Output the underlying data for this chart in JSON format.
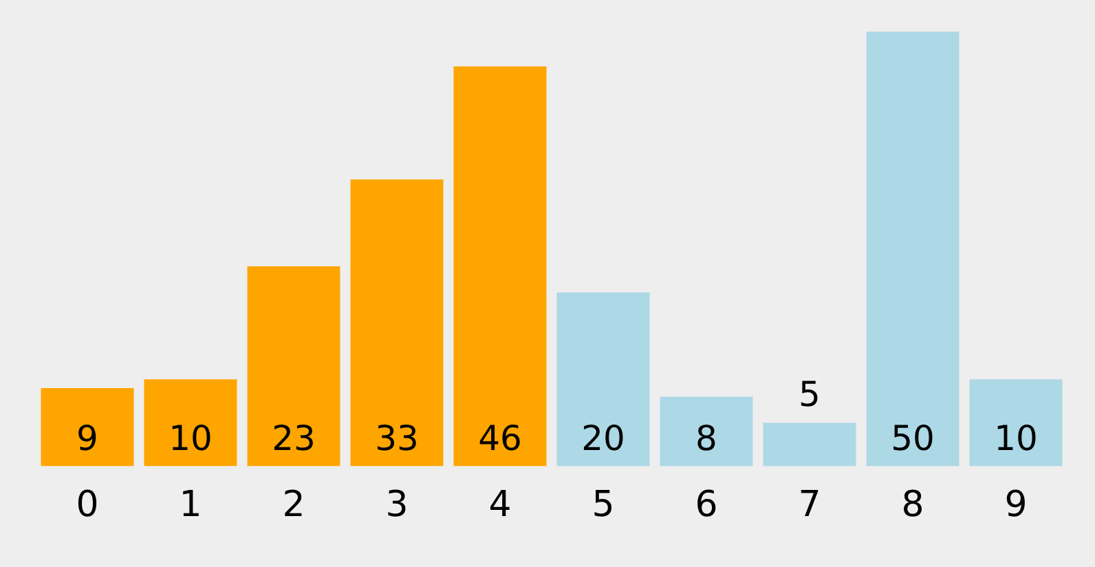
{
  "chart_data": {
    "type": "bar",
    "categories": [
      "0",
      "1",
      "2",
      "3",
      "4",
      "5",
      "6",
      "7",
      "8",
      "9"
    ],
    "values": [
      9,
      10,
      23,
      33,
      46,
      20,
      8,
      5,
      50,
      10
    ],
    "colors": [
      "#ffa500",
      "#ffa500",
      "#ffa500",
      "#ffa500",
      "#ffa500",
      "#add8e6",
      "#add8e6",
      "#add8e6",
      "#add8e6",
      "#add8e6"
    ],
    "data_labels": true,
    "tick_labels": "x"
  }
}
